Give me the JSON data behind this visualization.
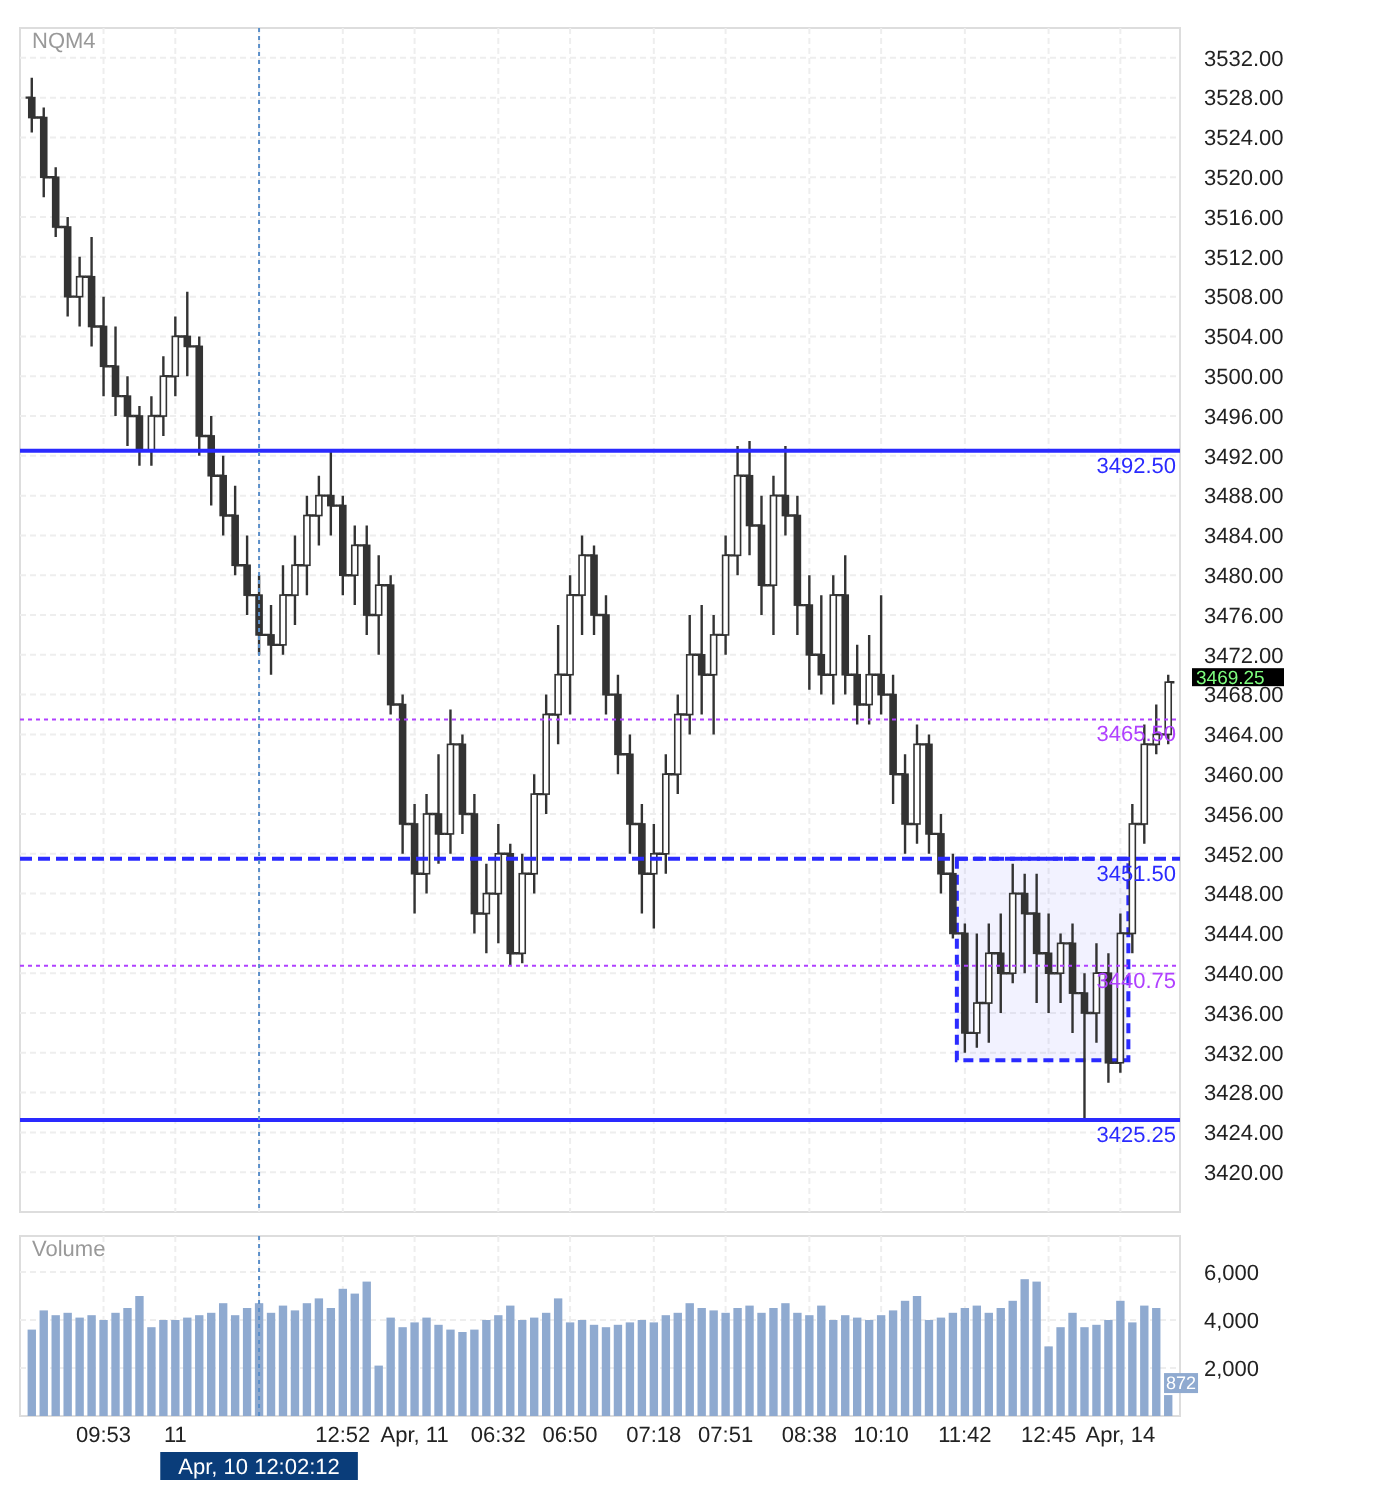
{
  "chart_data": [
    {
      "type": "candlestick",
      "title": "NQM4",
      "color": "#333333",
      "grid": true,
      "tick_labels": "y",
      "categories": [
        null,
        null,
        null,
        null,
        null,
        null,
        "09:53",
        null,
        null,
        null,
        null,
        null,
        "11",
        null,
        null,
        null,
        null,
        null,
        null,
        "Apr, 10 12:02:12",
        null,
        null,
        null,
        null,
        null,
        null,
        "12:52",
        null,
        null,
        null,
        null,
        null,
        "Apr, 11",
        null,
        null,
        null,
        null,
        null,
        null,
        "06:32",
        null,
        null,
        null,
        null,
        null,
        "06:50",
        null,
        null,
        null,
        null,
        null,
        null,
        "07:18",
        null,
        null,
        null,
        null,
        null,
        "07:51",
        null,
        null,
        null,
        null,
        null,
        null,
        "08:38",
        null,
        null,
        null,
        null,
        null,
        "10:10",
        null,
        null,
        null,
        null,
        null,
        null,
        "11:42",
        null,
        null,
        null,
        null,
        null,
        null,
        "12:45",
        null,
        null,
        null,
        null,
        null,
        "Apr, 14",
        null,
        null,
        null,
        null
      ],
      "ohlc": [
        [
          3528,
          3530,
          3524.5,
          3526
        ],
        [
          3526,
          3527,
          3518,
          3520
        ],
        [
          3520,
          3521,
          3514,
          3515
        ],
        [
          3515,
          3516,
          3506,
          3508
        ],
        [
          3508,
          3512,
          3505,
          3510
        ],
        [
          3510,
          3514,
          3503,
          3505
        ],
        [
          3505,
          3508,
          3498,
          3501
        ],
        [
          3501,
          3505,
          3496,
          3498
        ],
        [
          3498,
          3500,
          3493,
          3496
        ],
        [
          3496,
          3497,
          3491,
          3492.5
        ],
        [
          3492.5,
          3498,
          3491,
          3496
        ],
        [
          3496,
          3502,
          3494,
          3500
        ],
        [
          3500,
          3506,
          3498,
          3504
        ],
        [
          3504,
          3508.5,
          3500,
          3503
        ],
        [
          3503,
          3504,
          3492,
          3494
        ],
        [
          3494,
          3496,
          3487,
          3490
        ],
        [
          3490,
          3492,
          3484,
          3486
        ],
        [
          3486,
          3489,
          3480,
          3481
        ],
        [
          3481,
          3484,
          3476,
          3478
        ],
        [
          3478,
          3480,
          3472,
          3474
        ],
        [
          3474,
          3477,
          3470,
          3473
        ],
        [
          3473,
          3481,
          3472,
          3478
        ],
        [
          3478,
          3484,
          3475,
          3481
        ],
        [
          3481,
          3488,
          3478,
          3486
        ],
        [
          3486,
          3490,
          3483,
          3488
        ],
        [
          3488,
          3492.5,
          3484,
          3487
        ],
        [
          3487,
          3488,
          3478,
          3480
        ],
        [
          3480,
          3485,
          3477,
          3483
        ],
        [
          3483,
          3485,
          3474,
          3476
        ],
        [
          3476,
          3482,
          3472,
          3479
        ],
        [
          3479,
          3480,
          3466,
          3467
        ],
        [
          3467,
          3468,
          3452,
          3455
        ],
        [
          3455,
          3457,
          3446,
          3450
        ],
        [
          3450,
          3458,
          3448,
          3456
        ],
        [
          3456,
          3462,
          3451,
          3454
        ],
        [
          3454,
          3466.5,
          3452,
          3463
        ],
        [
          3463,
          3464,
          3454,
          3456
        ],
        [
          3456,
          3458,
          3444,
          3446
        ],
        [
          3446,
          3451,
          3442,
          3448
        ],
        [
          3448,
          3455,
          3443,
          3452
        ],
        [
          3452,
          3453,
          3440.75,
          3442
        ],
        [
          3442,
          3452,
          3441,
          3450
        ],
        [
          3450,
          3460,
          3448,
          3458
        ],
        [
          3458,
          3468,
          3456,
          3466
        ],
        [
          3466,
          3475,
          3463,
          3470
        ],
        [
          3470,
          3480,
          3466,
          3478
        ],
        [
          3478,
          3484,
          3474,
          3482
        ],
        [
          3482,
          3483,
          3474,
          3476
        ],
        [
          3476,
          3478,
          3466,
          3468
        ],
        [
          3468,
          3470,
          3460,
          3462
        ],
        [
          3462,
          3464,
          3452,
          3455
        ],
        [
          3455,
          3457,
          3446,
          3450
        ],
        [
          3450,
          3455,
          3444.5,
          3452
        ],
        [
          3452,
          3462,
          3450,
          3460
        ],
        [
          3460,
          3468,
          3458,
          3466
        ],
        [
          3466,
          3476,
          3464,
          3472
        ],
        [
          3472,
          3477,
          3466,
          3470
        ],
        [
          3470,
          3476,
          3464,
          3474
        ],
        [
          3474,
          3484,
          3472,
          3482
        ],
        [
          3482,
          3493,
          3480,
          3490
        ],
        [
          3490,
          3493.5,
          3482,
          3485
        ],
        [
          3485,
          3488,
          3476,
          3479
        ],
        [
          3479,
          3490,
          3474,
          3488
        ],
        [
          3488,
          3493,
          3484,
          3486
        ],
        [
          3486,
          3488,
          3474,
          3477
        ],
        [
          3477,
          3480,
          3468.5,
          3472
        ],
        [
          3472,
          3478,
          3468,
          3470
        ],
        [
          3470,
          3480,
          3467,
          3478
        ],
        [
          3478,
          3482,
          3468,
          3470
        ],
        [
          3470,
          3473,
          3465,
          3467
        ],
        [
          3467,
          3474,
          3465,
          3470
        ],
        [
          3470,
          3478,
          3466,
          3468
        ],
        [
          3468,
          3470,
          3457,
          3460
        ],
        [
          3460,
          3462,
          3452,
          3455
        ],
        [
          3455,
          3465,
          3453,
          3463
        ],
        [
          3463,
          3464,
          3452,
          3454
        ],
        [
          3454,
          3456,
          3448,
          3450
        ],
        [
          3450,
          3452,
          3443.5,
          3444
        ],
        [
          3444,
          3445,
          3432,
          3434
        ],
        [
          3434,
          3444,
          3432.5,
          3437
        ],
        [
          3437,
          3445,
          3433,
          3442
        ],
        [
          3442,
          3446,
          3436,
          3440
        ],
        [
          3440,
          3451,
          3439,
          3448
        ],
        [
          3448,
          3450,
          3440,
          3446
        ],
        [
          3446,
          3450,
          3437,
          3442
        ],
        [
          3442,
          3446,
          3436,
          3440
        ],
        [
          3440,
          3444,
          3437,
          3443
        ],
        [
          3443,
          3445,
          3434,
          3438
        ],
        [
          3438,
          3440,
          3425.25,
          3436
        ],
        [
          3436,
          3443,
          3433,
          3440
        ],
        [
          3440,
          3442,
          3429,
          3431
        ],
        [
          3431,
          3446,
          3430,
          3444
        ],
        [
          3444,
          3457,
          3442,
          3455
        ],
        [
          3455,
          3465,
          3453,
          3463
        ],
        [
          3463,
          3467,
          3462,
          3464
        ],
        [
          3464,
          3470,
          3463,
          3469.25
        ]
      ],
      "ylim": [
        3416,
        3535
      ],
      "yticks": [
        {
          "value": 3420,
          "label": "3420.00"
        },
        {
          "value": 3424,
          "label": "3424.00"
        },
        {
          "value": 3428,
          "label": "3428.00"
        },
        {
          "value": 3432,
          "label": "3432.00"
        },
        {
          "value": 3436,
          "label": "3436.00"
        },
        {
          "value": 3440,
          "label": "3440.00"
        },
        {
          "value": 3444,
          "label": "3444.00"
        },
        {
          "value": 3448,
          "label": "3448.00"
        },
        {
          "value": 3452,
          "label": "3452.00"
        },
        {
          "value": 3456,
          "label": "3456.00"
        },
        {
          "value": 3460,
          "label": "3460.00"
        },
        {
          "value": 3464,
          "label": "3464.00"
        },
        {
          "value": 3468,
          "label": "3468.00"
        },
        {
          "value": 3472,
          "label": "3472.00"
        },
        {
          "value": 3476,
          "label": "3476.00"
        },
        {
          "value": 3480,
          "label": "3480.00"
        },
        {
          "value": 3484,
          "label": "3484.00"
        },
        {
          "value": 3488,
          "label": "3488.00"
        },
        {
          "value": 3492,
          "label": "3492.00"
        },
        {
          "value": 3496,
          "label": "3496.00"
        },
        {
          "value": 3500,
          "label": "3500.00"
        },
        {
          "value": 3504,
          "label": "3504.00"
        },
        {
          "value": 3508,
          "label": "3508.00"
        },
        {
          "value": 3512,
          "label": "3512.00"
        },
        {
          "value": 3516,
          "label": "3516.00"
        },
        {
          "value": 3520,
          "label": "3520.00"
        },
        {
          "value": 3524,
          "label": "3524.00"
        },
        {
          "value": 3528,
          "label": "3528.00"
        },
        {
          "value": 3532,
          "label": "3532.00"
        }
      ],
      "ref_lines": [
        {
          "axis": "y",
          "value": 3492.5,
          "label": "3492.50",
          "color": "#2a2aff",
          "line_style": "solid"
        },
        {
          "axis": "y",
          "value": 3465.5,
          "label": "3465.50",
          "color": "#b040ff",
          "line_style": "dotted"
        },
        {
          "axis": "y",
          "value": 3451.5,
          "label": "3451.50",
          "color": "#2a2aff",
          "line_style": "dashed"
        },
        {
          "axis": "y",
          "value": 3440.75,
          "label": "3440.75",
          "color": "#b040ff",
          "line_style": "dotted"
        },
        {
          "axis": "y",
          "value": 3425.25,
          "label": "3425.25",
          "color": "#2a2aff",
          "line_style": "solid"
        },
        {
          "axis": "x",
          "value": "Apr, 10 12:02:12",
          "color": "#5b8fc9",
          "line_style": "dotted"
        }
      ],
      "bands": [
        {
          "axis": "y",
          "from": 3431.25,
          "to": 3451.5,
          "color": "#2a2aff"
        }
      ],
      "annotations": [
        "3469.25"
      ]
    },
    {
      "type": "bar",
      "title": "Volume",
      "color": "#8faad0",
      "grid": true,
      "categories": [
        null,
        null,
        null,
        null,
        null,
        null,
        "09:53",
        null,
        null,
        null,
        null,
        null,
        "11",
        null,
        null,
        null,
        null,
        null,
        null,
        "Apr, 10 12:02:12",
        null,
        null,
        null,
        null,
        null,
        null,
        "12:52",
        null,
        null,
        null,
        null,
        null,
        "Apr, 11",
        null,
        null,
        null,
        null,
        null,
        null,
        "06:32",
        null,
        null,
        null,
        null,
        null,
        "06:50",
        null,
        null,
        null,
        null,
        null,
        null,
        "07:18",
        null,
        null,
        null,
        null,
        null,
        "07:51",
        null,
        null,
        null,
        null,
        null,
        null,
        "08:38",
        null,
        null,
        null,
        null,
        null,
        "10:10",
        null,
        null,
        null,
        null,
        null,
        null,
        "11:42",
        null,
        null,
        null,
        null,
        null,
        null,
        "12:45",
        null,
        null,
        null,
        null,
        null,
        "Apr, 14",
        null,
        null,
        null,
        null
      ],
      "ref_lines": [
        {
          "axis": "x",
          "value": "Apr, 10 12:02:12",
          "color": "#5b8fc9",
          "line_style": "dotted"
        }
      ],
      "values": [
        3600,
        4400,
        4200,
        4300,
        4100,
        4200,
        4000,
        4300,
        4500,
        5000,
        3700,
        4000,
        4000,
        4100,
        4200,
        4300,
        4700,
        4200,
        4500,
        4700,
        4300,
        4600,
        4400,
        4700,
        4900,
        4500,
        5300,
        5100,
        5600,
        2100,
        4100,
        3700,
        3900,
        4100,
        3800,
        3600,
        3500,
        3600,
        4000,
        4200,
        4600,
        4000,
        4100,
        4300,
        4900,
        3900,
        4000,
        3800,
        3700,
        3800,
        3900,
        4000,
        3900,
        4200,
        4300,
        4700,
        4500,
        4400,
        4300,
        4500,
        4600,
        4300,
        4500,
        4700,
        4300,
        4200,
        4600,
        4000,
        4200,
        4100,
        4000,
        4200,
        4400,
        4800,
        5000,
        4000,
        4100,
        4300,
        4500,
        4600,
        4300,
        4500,
        4800,
        5700,
        5600,
        2900,
        3700,
        4300,
        3700,
        3800,
        4000,
        4800,
        3900,
        4600,
        4500,
        872
      ],
      "value_labels": [
        null,
        null,
        null,
        null,
        null,
        null,
        null,
        null,
        null,
        null,
        null,
        null,
        null,
        null,
        null,
        null,
        null,
        null,
        null,
        null,
        null,
        null,
        null,
        null,
        null,
        null,
        null,
        null,
        null,
        null,
        null,
        null,
        null,
        null,
        null,
        null,
        null,
        null,
        null,
        null,
        null,
        null,
        null,
        null,
        null,
        null,
        null,
        null,
        null,
        null,
        null,
        null,
        null,
        null,
        null,
        null,
        null,
        null,
        null,
        null,
        null,
        null,
        null,
        null,
        null,
        null,
        null,
        null,
        null,
        null,
        null,
        null,
        null,
        null,
        null,
        null,
        null,
        null,
        null,
        null,
        null,
        null,
        null,
        null,
        null,
        null,
        null,
        null,
        null,
        null,
        null,
        null,
        null,
        null,
        null,
        "872"
      ],
      "ylim": [
        0,
        7500
      ],
      "yticks": [
        {
          "value": 2000,
          "label": "2,000"
        },
        {
          "value": 4000,
          "label": "4,000"
        },
        {
          "value": 6000,
          "label": "6,000"
        }
      ]
    }
  ]
}
